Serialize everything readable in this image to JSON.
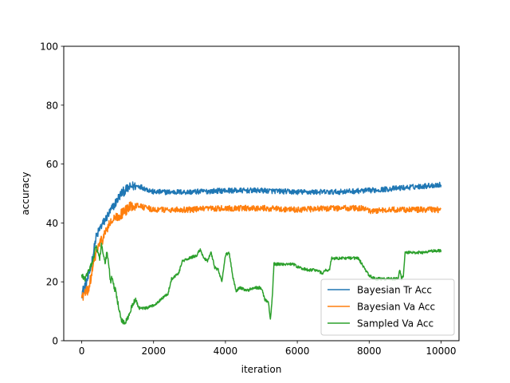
{
  "chart_data": {
    "type": "line",
    "title": "",
    "xlabel": "iteration",
    "ylabel": "accuracy",
    "xlim": [
      -500,
      10500
    ],
    "ylim": [
      0,
      100
    ],
    "xticks": [
      0,
      2000,
      4000,
      6000,
      8000,
      10000
    ],
    "yticks": [
      0,
      20,
      40,
      60,
      80,
      100
    ],
    "grid": false,
    "legend": {
      "position": "lower-right",
      "entries": [
        "Bayesian Tr Acc",
        "Bayesian Va Acc",
        "Sampled Va Acc"
      ]
    },
    "series": [
      {
        "name": "Bayesian Tr Acc",
        "color": "#1f77b4",
        "noise": 0.9,
        "points": [
          [
            0,
            16
          ],
          [
            100,
            19
          ],
          [
            200,
            22
          ],
          [
            300,
            28
          ],
          [
            400,
            35
          ],
          [
            500,
            38
          ],
          [
            600,
            40
          ],
          [
            700,
            42
          ],
          [
            800,
            44
          ],
          [
            900,
            46
          ],
          [
            1000,
            48
          ],
          [
            1100,
            50
          ],
          [
            1200,
            51
          ],
          [
            1400,
            52.5
          ],
          [
            1600,
            52.5
          ],
          [
            1800,
            51.5
          ],
          [
            2000,
            50.5
          ],
          [
            2500,
            50.5
          ],
          [
            3000,
            50.5
          ],
          [
            4000,
            51
          ],
          [
            5000,
            51
          ],
          [
            6000,
            50.5
          ],
          [
            7000,
            50.5
          ],
          [
            8000,
            51
          ],
          [
            9000,
            52
          ],
          [
            10000,
            53
          ]
        ]
      },
      {
        "name": "Bayesian Va Acc",
        "color": "#ff7f0e",
        "noise": 1.0,
        "points": [
          [
            0,
            15
          ],
          [
            100,
            16
          ],
          [
            200,
            18
          ],
          [
            300,
            24
          ],
          [
            400,
            30
          ],
          [
            500,
            33
          ],
          [
            600,
            35
          ],
          [
            700,
            38
          ],
          [
            800,
            40
          ],
          [
            900,
            41
          ],
          [
            1000,
            42
          ],
          [
            1200,
            44
          ],
          [
            1400,
            46
          ],
          [
            1600,
            46
          ],
          [
            1800,
            45
          ],
          [
            2000,
            44.5
          ],
          [
            3000,
            44.5
          ],
          [
            4000,
            45
          ],
          [
            5000,
            45
          ],
          [
            6000,
            44.5
          ],
          [
            7000,
            45
          ],
          [
            7800,
            45
          ],
          [
            8000,
            44
          ],
          [
            8500,
            44.5
          ],
          [
            9000,
            44.5
          ],
          [
            10000,
            44.5
          ]
        ]
      },
      {
        "name": "Sampled Va Acc",
        "color": "#2ca02c",
        "noise": 0.5,
        "points": [
          [
            0,
            22
          ],
          [
            100,
            21
          ],
          [
            200,
            24
          ],
          [
            300,
            27
          ],
          [
            400,
            32
          ],
          [
            450,
            30
          ],
          [
            500,
            28
          ],
          [
            550,
            33
          ],
          [
            600,
            29
          ],
          [
            650,
            26
          ],
          [
            700,
            30
          ],
          [
            750,
            26
          ],
          [
            800,
            20
          ],
          [
            850,
            22
          ],
          [
            900,
            18
          ],
          [
            950,
            17
          ],
          [
            1000,
            13
          ],
          [
            1050,
            10
          ],
          [
            1100,
            7
          ],
          [
            1200,
            6
          ],
          [
            1300,
            8
          ],
          [
            1400,
            12
          ],
          [
            1500,
            14
          ],
          [
            1600,
            11
          ],
          [
            1800,
            11
          ],
          [
            2000,
            12
          ],
          [
            2200,
            14
          ],
          [
            2400,
            16
          ],
          [
            2500,
            21
          ],
          [
            2600,
            22
          ],
          [
            2700,
            23
          ],
          [
            2800,
            27
          ],
          [
            3000,
            28
          ],
          [
            3200,
            29
          ],
          [
            3300,
            31
          ],
          [
            3400,
            28
          ],
          [
            3500,
            27
          ],
          [
            3600,
            30
          ],
          [
            3700,
            25
          ],
          [
            3800,
            24
          ],
          [
            3900,
            20
          ],
          [
            4000,
            29
          ],
          [
            4100,
            30
          ],
          [
            4200,
            22
          ],
          [
            4300,
            17
          ],
          [
            4400,
            18
          ],
          [
            4600,
            17
          ],
          [
            4800,
            18
          ],
          [
            5000,
            18
          ],
          [
            5100,
            14
          ],
          [
            5200,
            13
          ],
          [
            5250,
            7
          ],
          [
            5300,
            14
          ],
          [
            5350,
            26
          ],
          [
            5500,
            26
          ],
          [
            5700,
            26
          ],
          [
            5900,
            26
          ],
          [
            6000,
            25
          ],
          [
            6300,
            24
          ],
          [
            6500,
            24
          ],
          [
            6700,
            23
          ],
          [
            6800,
            24
          ],
          [
            6900,
            24
          ],
          [
            6950,
            28
          ],
          [
            7200,
            28
          ],
          [
            7500,
            28
          ],
          [
            7700,
            28
          ],
          [
            7800,
            26
          ],
          [
            7900,
            24
          ],
          [
            8000,
            22
          ],
          [
            8200,
            21
          ],
          [
            8400,
            21
          ],
          [
            8600,
            21
          ],
          [
            8800,
            21
          ],
          [
            8850,
            24
          ],
          [
            8900,
            21
          ],
          [
            8950,
            22
          ],
          [
            9000,
            30
          ],
          [
            9200,
            30
          ],
          [
            9500,
            30
          ],
          [
            9800,
            30.5
          ],
          [
            10000,
            30.5
          ]
        ]
      }
    ]
  }
}
